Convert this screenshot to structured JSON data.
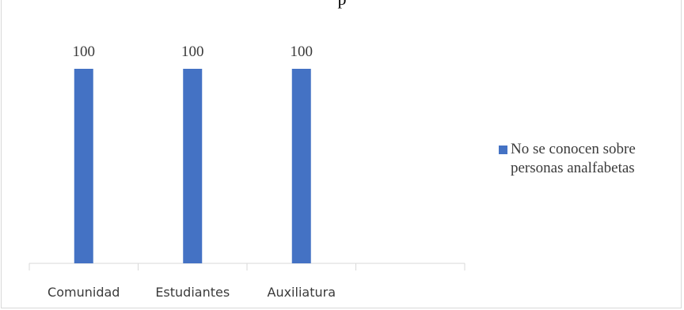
{
  "title": "p",
  "chart_data": {
    "type": "bar",
    "title": "",
    "xlabel": "",
    "ylabel": "",
    "categories": [
      "Comunidad",
      "Estudiantes",
      "Auxiliatura",
      ""
    ],
    "series": [
      {
        "name": "No se conocen sobre personas analfabetas",
        "values": [
          100,
          100,
          100,
          null
        ],
        "color": "#4472c4"
      }
    ],
    "data_labels": [
      "100",
      "100",
      "100"
    ],
    "ylim": [
      0,
      100
    ],
    "grid": false,
    "legend_position": "right"
  }
}
